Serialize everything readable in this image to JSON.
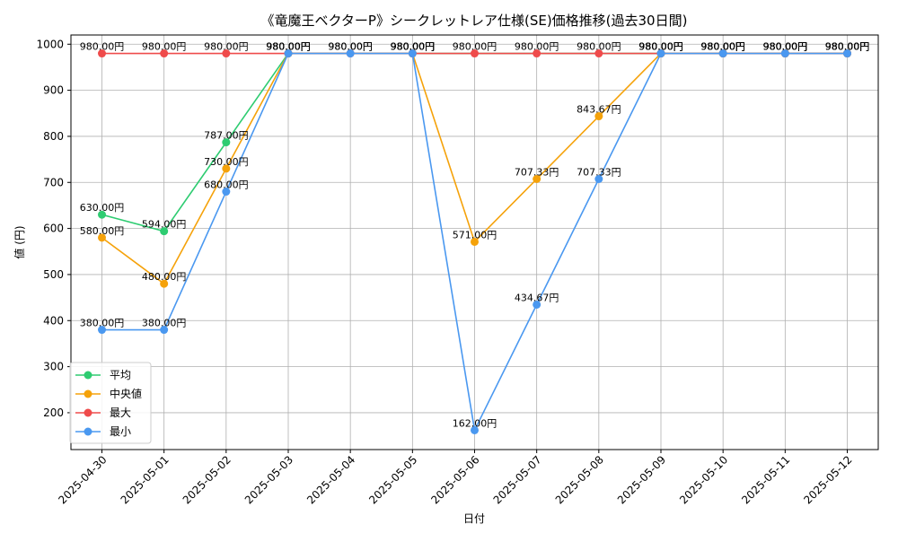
{
  "chart_data": {
    "type": "line",
    "title": "《竜魔王ベクターP》シークレットレア仕様(SE)価格推移(過去30日間)",
    "xlabel": "日付",
    "ylabel": "値 (円)",
    "ylim": [
      120,
      1020
    ],
    "yticks": [
      200,
      300,
      400,
      500,
      600,
      700,
      800,
      900,
      1000
    ],
    "grid": true,
    "legend_position": "bottom-left",
    "categories": [
      "2025-04-30",
      "2025-05-01",
      "2025-05-02",
      "2025-05-03",
      "2025-05-04",
      "2025-05-05",
      "2025-05-06",
      "2025-05-07",
      "2025-05-08",
      "2025-05-09",
      "2025-05-10",
      "2025-05-11",
      "2025-05-12"
    ],
    "series": [
      {
        "name": "平均",
        "color": "#2ecc71",
        "values": [
          630.0,
          594.0,
          787.0,
          980.0,
          null,
          980.0,
          null,
          null,
          null,
          980.0,
          980.0,
          980.0,
          980.0
        ]
      },
      {
        "name": "中央値",
        "color": "#f5a20a",
        "values": [
          580.0,
          480.0,
          730.0,
          980.0,
          null,
          980.0,
          571.0,
          707.33,
          843.67,
          980.0,
          980.0,
          980.0,
          980.0
        ]
      },
      {
        "name": "最大",
        "color": "#ef4b4b",
        "values": [
          980.0,
          980.0,
          980.0,
          980.0,
          980.0,
          980.0,
          980.0,
          980.0,
          980.0,
          980.0,
          980.0,
          980.0,
          980.0
        ]
      },
      {
        "name": "最小",
        "color": "#4a98f0",
        "values": [
          380.0,
          380.0,
          680.0,
          980.0,
          980.0,
          980.0,
          162.0,
          434.67,
          707.33,
          980.0,
          980.0,
          980.0,
          980.0
        ]
      }
    ],
    "label_suffix": "円",
    "label_decimals": 2
  }
}
